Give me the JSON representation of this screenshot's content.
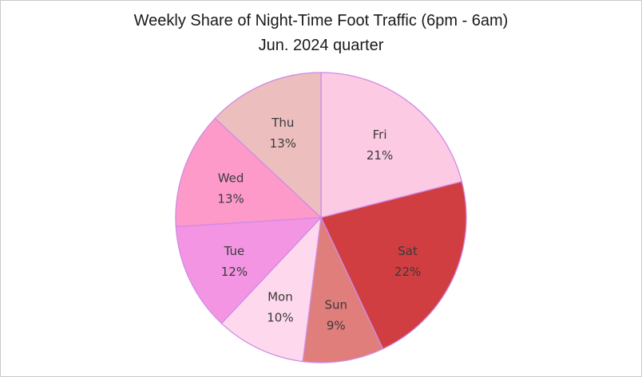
{
  "chart_data": {
    "type": "pie",
    "title": "Weekly Share of Night-Time Foot Traffic (6pm - 6am)",
    "subtitle": "Jun. 2024 quarter",
    "start_angle_deg": 0,
    "direction": "clockwise",
    "slices": [
      {
        "label": "Fri",
        "value": 21,
        "value_label": "21%",
        "color": "#fdcae4"
      },
      {
        "label": "Sat",
        "value": 22,
        "value_label": "22%",
        "color": "#d03e41"
      },
      {
        "label": "Sun",
        "value": 9,
        "value_label": "9%",
        "color": "#e07e7c"
      },
      {
        "label": "Mon",
        "value": 10,
        "value_label": "10%",
        "color": "#fed8ec"
      },
      {
        "label": "Tue",
        "value": 12,
        "value_label": "12%",
        "color": "#f495e4"
      },
      {
        "label": "Wed",
        "value": 13,
        "value_label": "13%",
        "color": "#fe9ac9"
      },
      {
        "label": "Thu",
        "value": 13,
        "value_label": "13%",
        "color": "#edbebe"
      }
    ],
    "edge_color": "#d08ae6"
  }
}
